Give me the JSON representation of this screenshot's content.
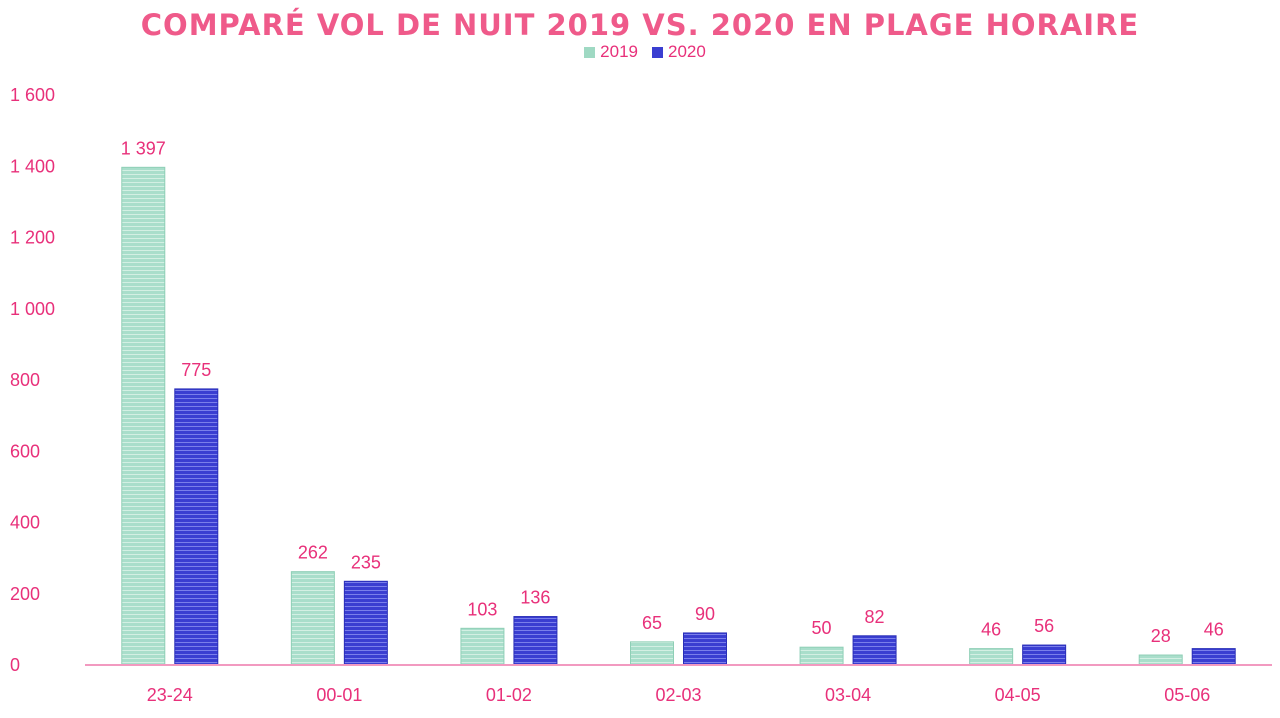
{
  "chart_data": {
    "type": "bar",
    "title": "COMPARÉ VOL DE NUIT 2019 VS. 2020 EN PLAGE HORAIRE",
    "categories": [
      "23-24",
      "00-01",
      "01-02",
      "02-03",
      "03-04",
      "04-05",
      "05-06"
    ],
    "series": [
      {
        "name": "2019",
        "values": [
          1397,
          262,
          103,
          65,
          50,
          46,
          28
        ],
        "labels": [
          "1 397",
          "262",
          "103",
          "65",
          "50",
          "46",
          "28"
        ],
        "color": "#9fd9c3",
        "stripe_color": "#c9eadd"
      },
      {
        "name": "2020",
        "values": [
          775,
          235,
          136,
          90,
          82,
          56,
          46
        ],
        "labels": [
          "775",
          "235",
          "136",
          "90",
          "82",
          "56",
          "46"
        ],
        "color": "#3a3ed1",
        "stripe_color": "#6b70e6"
      }
    ],
    "ylim": [
      0,
      1600
    ],
    "yticks": [
      0,
      200,
      400,
      600,
      800,
      1000,
      1200,
      1400,
      1600
    ],
    "ytick_labels": [
      "0",
      "200",
      "400",
      "600",
      "800",
      "1 000",
      "1 200",
      "1 400",
      "1 600"
    ],
    "xlabel": "",
    "ylabel": "",
    "grid": false,
    "legend_position": "top-center",
    "text_color": "#e8307a",
    "axis_color": "#f29ac0"
  }
}
